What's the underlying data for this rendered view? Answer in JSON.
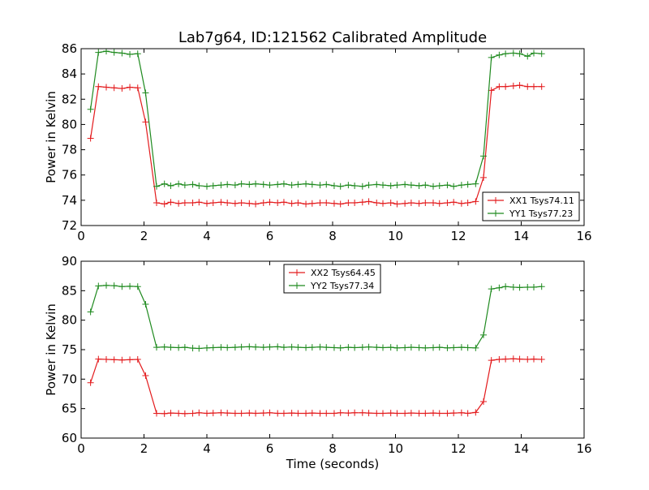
{
  "figure": {
    "title": "Lab7g64, ID:121562 Calibrated Amplitude"
  },
  "chart_data": [
    {
      "type": "line",
      "ylabel": "Power in Kelvin",
      "xlabel": "",
      "xlim": [
        0,
        16
      ],
      "ylim": [
        72,
        86
      ],
      "x_ticks": [
        0,
        2,
        4,
        6,
        8,
        10,
        12,
        14,
        16
      ],
      "y_ticks": [
        72,
        74,
        76,
        78,
        80,
        82,
        84,
        86
      ],
      "grid": false,
      "legend_position": "lower-right",
      "x": [
        0.3,
        0.55,
        0.8,
        1.05,
        1.3,
        1.55,
        1.8,
        2.05,
        2.4,
        2.65,
        2.85,
        3.1,
        3.3,
        3.55,
        3.75,
        4.0,
        4.2,
        4.45,
        4.65,
        4.9,
        5.1,
        5.35,
        5.55,
        5.8,
        6.0,
        6.25,
        6.45,
        6.7,
        6.9,
        7.15,
        7.35,
        7.6,
        7.8,
        8.05,
        8.25,
        8.5,
        8.7,
        8.95,
        9.15,
        9.4,
        9.6,
        9.85,
        10.05,
        10.3,
        10.5,
        10.75,
        10.95,
        11.2,
        11.4,
        11.65,
        11.85,
        12.1,
        12.3,
        12.55,
        12.8,
        13.05,
        13.3,
        13.5,
        13.75,
        13.95,
        14.2,
        14.4,
        14.65
      ],
      "series": [
        {
          "name": "XX1 Tsys74.11",
          "color": "#e31a1c",
          "values": [
            78.9,
            83.0,
            82.95,
            82.9,
            82.85,
            82.95,
            82.9,
            80.2,
            73.8,
            73.7,
            73.85,
            73.75,
            73.8,
            73.8,
            73.85,
            73.75,
            73.8,
            73.85,
            73.8,
            73.75,
            73.8,
            73.75,
            73.7,
            73.8,
            73.85,
            73.8,
            73.85,
            73.75,
            73.8,
            73.7,
            73.75,
            73.8,
            73.8,
            73.75,
            73.7,
            73.8,
            73.8,
            73.85,
            73.9,
            73.8,
            73.75,
            73.8,
            73.7,
            73.75,
            73.8,
            73.75,
            73.8,
            73.8,
            73.75,
            73.8,
            73.85,
            73.75,
            73.8,
            73.9,
            75.8,
            82.7,
            83.0,
            83.0,
            83.05,
            83.1,
            83.0,
            83.0,
            83.0
          ]
        },
        {
          "name": "YY1 Tsys77.23",
          "color": "#1f8a1f",
          "values": [
            81.2,
            85.7,
            85.8,
            85.7,
            85.65,
            85.55,
            85.6,
            82.5,
            75.1,
            75.3,
            75.15,
            75.3,
            75.2,
            75.25,
            75.15,
            75.1,
            75.15,
            75.2,
            75.25,
            75.2,
            75.3,
            75.25,
            75.3,
            75.25,
            75.2,
            75.25,
            75.3,
            75.2,
            75.25,
            75.3,
            75.25,
            75.2,
            75.25,
            75.15,
            75.1,
            75.2,
            75.15,
            75.1,
            75.2,
            75.25,
            75.2,
            75.15,
            75.2,
            75.25,
            75.2,
            75.15,
            75.2,
            75.1,
            75.15,
            75.2,
            75.1,
            75.2,
            75.25,
            75.3,
            77.5,
            85.3,
            85.5,
            85.6,
            85.65,
            85.6,
            85.4,
            85.65,
            85.6
          ]
        }
      ]
    },
    {
      "type": "line",
      "ylabel": "Power in Kelvin",
      "xlabel": "Time (seconds)",
      "xlim": [
        0,
        16
      ],
      "ylim": [
        60,
        90
      ],
      "x_ticks": [
        0,
        2,
        4,
        6,
        8,
        10,
        12,
        14,
        16
      ],
      "y_ticks": [
        60,
        65,
        70,
        75,
        80,
        85,
        90
      ],
      "grid": false,
      "legend_position": "upper-center",
      "x": [
        0.3,
        0.55,
        0.8,
        1.05,
        1.3,
        1.55,
        1.8,
        2.05,
        2.4,
        2.65,
        2.85,
        3.1,
        3.3,
        3.55,
        3.75,
        4.0,
        4.2,
        4.45,
        4.65,
        4.9,
        5.1,
        5.35,
        5.55,
        5.8,
        6.0,
        6.25,
        6.45,
        6.7,
        6.9,
        7.15,
        7.35,
        7.6,
        7.8,
        8.05,
        8.25,
        8.5,
        8.7,
        8.95,
        9.15,
        9.4,
        9.6,
        9.85,
        10.05,
        10.3,
        10.5,
        10.75,
        10.95,
        11.2,
        11.4,
        11.65,
        11.85,
        12.1,
        12.3,
        12.55,
        12.8,
        13.05,
        13.3,
        13.5,
        13.75,
        13.95,
        14.2,
        14.4,
        14.65
      ],
      "series": [
        {
          "name": "XX2 Tsys64.45",
          "color": "#e31a1c",
          "values": [
            69.4,
            73.4,
            73.35,
            73.3,
            73.25,
            73.3,
            73.35,
            70.6,
            64.2,
            64.15,
            64.25,
            64.2,
            64.15,
            64.2,
            64.3,
            64.2,
            64.25,
            64.3,
            64.25,
            64.2,
            64.2,
            64.25,
            64.2,
            64.25,
            64.3,
            64.2,
            64.2,
            64.25,
            64.2,
            64.2,
            64.25,
            64.2,
            64.2,
            64.2,
            64.3,
            64.25,
            64.3,
            64.3,
            64.25,
            64.2,
            64.2,
            64.25,
            64.2,
            64.2,
            64.25,
            64.2,
            64.2,
            64.25,
            64.2,
            64.2,
            64.25,
            64.3,
            64.2,
            64.35,
            66.2,
            73.2,
            73.35,
            73.4,
            73.45,
            73.4,
            73.35,
            73.4,
            73.35
          ]
        },
        {
          "name": "YY2 Tsys77.34",
          "color": "#1f8a1f",
          "values": [
            81.4,
            85.8,
            85.9,
            85.85,
            85.7,
            85.75,
            85.7,
            82.7,
            75.4,
            75.45,
            75.4,
            75.35,
            75.4,
            75.25,
            75.2,
            75.3,
            75.35,
            75.4,
            75.35,
            75.4,
            75.45,
            75.5,
            75.45,
            75.4,
            75.45,
            75.5,
            75.4,
            75.45,
            75.4,
            75.35,
            75.4,
            75.45,
            75.4,
            75.35,
            75.3,
            75.4,
            75.35,
            75.4,
            75.45,
            75.4,
            75.35,
            75.4,
            75.3,
            75.35,
            75.4,
            75.35,
            75.3,
            75.35,
            75.4,
            75.3,
            75.35,
            75.4,
            75.35,
            75.3,
            77.5,
            85.3,
            85.5,
            85.7,
            85.6,
            85.55,
            85.6,
            85.6,
            85.7
          ]
        }
      ]
    }
  ]
}
